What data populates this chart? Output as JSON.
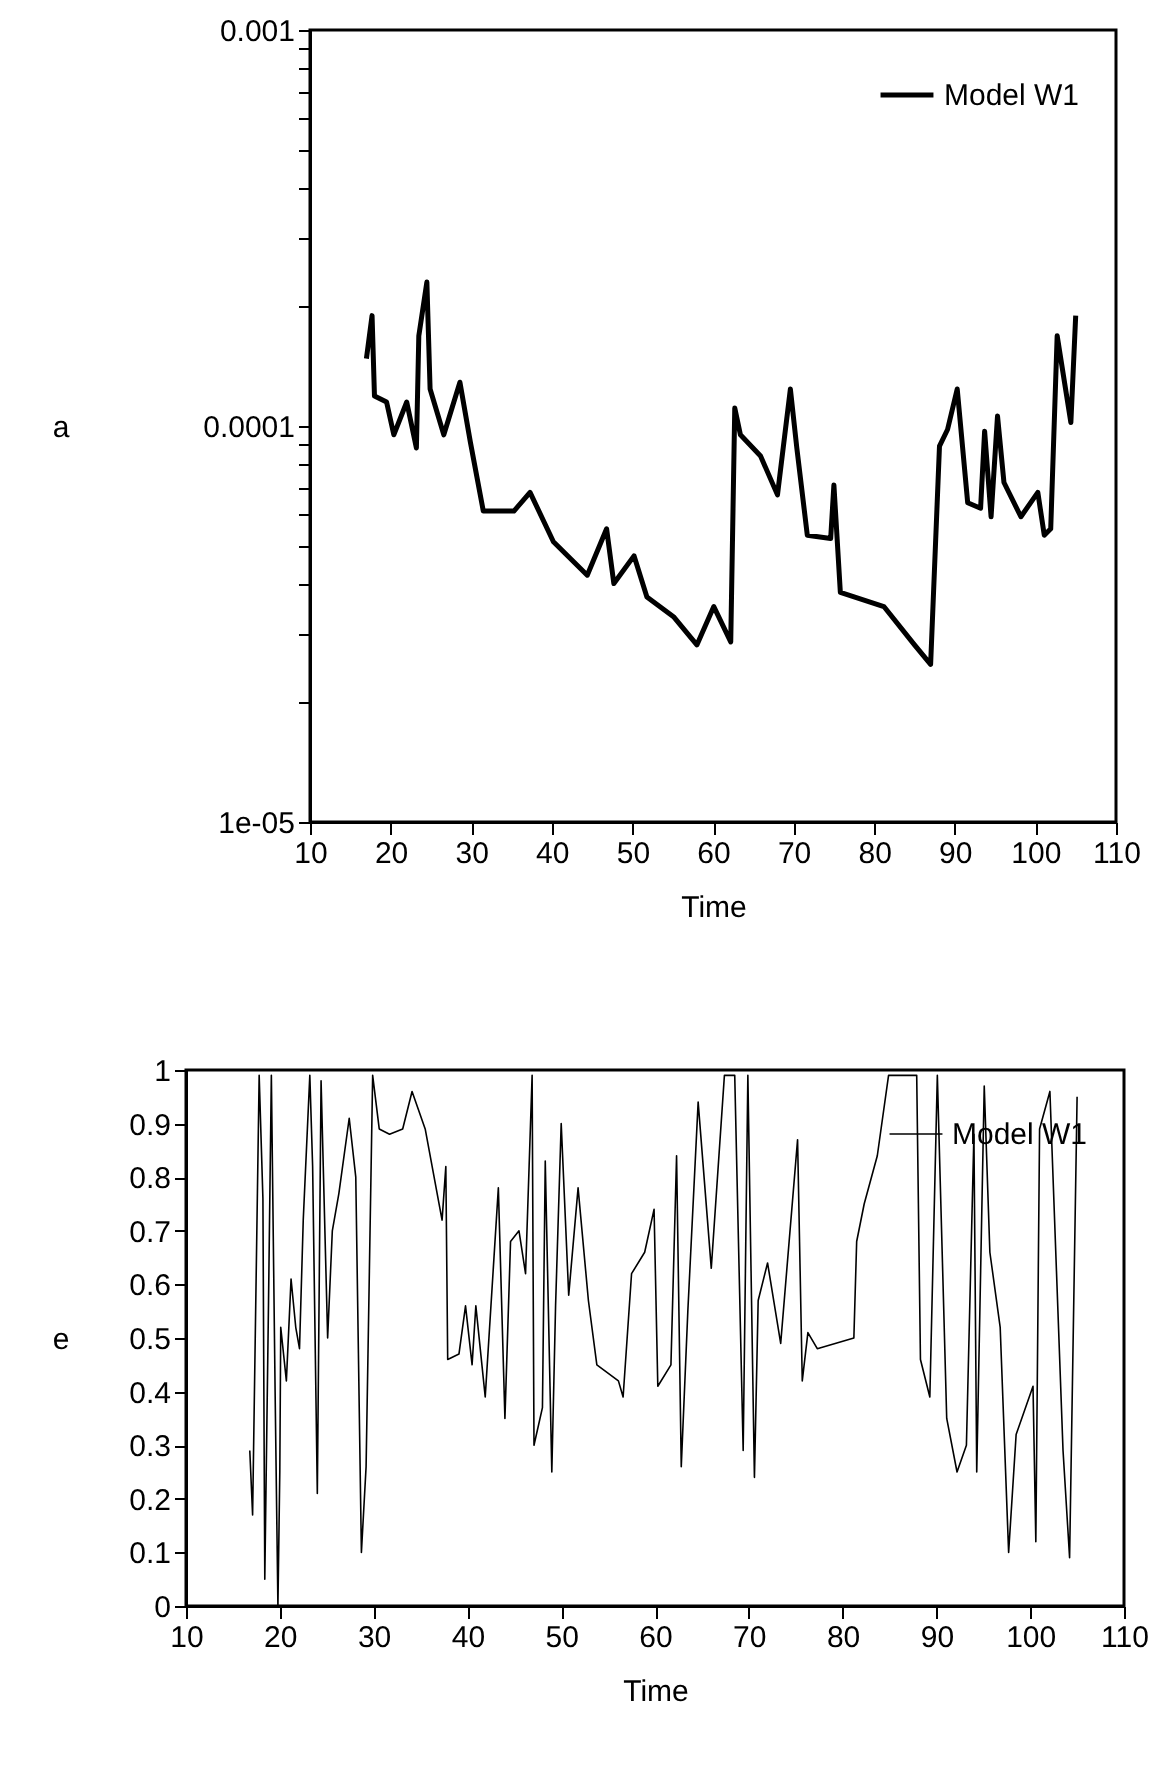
{
  "chart_data": [
    {
      "type": "line",
      "xlabel": "Time",
      "ylabel": "a",
      "log": "y",
      "legend": "top right",
      "xlim": [
        10,
        110
      ],
      "xticks": [
        10,
        20,
        30,
        40,
        50,
        60,
        70,
        80,
        90,
        100,
        110
      ],
      "ylim": [
        1e-05,
        0.001
      ],
      "yticks": [
        {
          "value": 1e-05,
          "label": "1e-05"
        },
        {
          "value": 2e-05,
          "label": null
        },
        {
          "value": 3e-05,
          "label": null
        },
        {
          "value": 4e-05,
          "label": null
        },
        {
          "value": 5e-05,
          "label": null
        },
        {
          "value": 6e-05,
          "label": null
        },
        {
          "value": 7e-05,
          "label": null
        },
        {
          "value": 8e-05,
          "label": null
        },
        {
          "value": 9e-05,
          "label": null
        },
        0.0001,
        {
          "value": 0.0002,
          "label": null
        },
        {
          "value": 0.0003,
          "label": null
        },
        {
          "value": 0.0004,
          "label": null
        },
        {
          "value": 0.0005,
          "label": null
        },
        {
          "value": 0.0006,
          "label": null
        },
        {
          "value": 0.0007,
          "label": null
        },
        {
          "value": 0.0008,
          "label": null
        },
        {
          "value": 0.0009,
          "label": null
        },
        0.001
      ],
      "series": [
        {
          "name": "Model W1",
          "color": "#000000",
          "x": [
            17.0,
            17.7,
            18.0,
            19.5,
            20.4,
            22.0,
            23.2,
            23.5,
            24.5,
            24.9,
            26.6,
            28.6,
            29.9,
            31.5,
            35.3,
            37.3,
            40.2,
            44.4,
            46.8,
            47.7,
            50.2,
            51.8,
            55.1,
            58.0,
            60.1,
            62.2,
            62.7,
            63.4,
            65.9,
            68.0,
            69.6,
            70.4,
            71.7,
            74.6,
            75.0,
            75.8,
            81.2,
            85.0,
            87.0,
            88.1,
            89.1,
            90.3,
            91.6,
            93.2,
            93.7,
            94.5,
            95.3,
            96.1,
            98.2,
            100.3,
            101.1,
            101.9,
            102.7,
            104.4,
            105.0
          ],
          "values": [
            0.000148,
            0.00019,
            0.000119,
            0.000115,
            9.5e-05,
            0.000115,
            8.8e-05,
            0.000169,
            0.000231,
            0.000124,
            9.5e-05,
            0.000129,
            9.1e-05,
            6.1e-05,
            6.1e-05,
            6.8e-05,
            5.1e-05,
            4.2e-05,
            5.5e-05,
            4e-05,
            4.7e-05,
            3.7e-05,
            3.3e-05,
            2.8e-05,
            3.5e-05,
            2.85e-05,
            0.000111,
            9.5e-05,
            8.4e-05,
            6.7e-05,
            0.000124,
            8.8e-05,
            5.3e-05,
            5.2e-05,
            7.1e-05,
            3.8e-05,
            3.5e-05,
            2.8e-05,
            2.5e-05,
            8.9e-05,
            9.8e-05,
            0.000124,
            6.4e-05,
            6.2e-05,
            9.7e-05,
            5.9e-05,
            0.000106,
            7.2e-05,
            5.9e-05,
            6.8e-05,
            5.3e-05,
            5.5e-05,
            0.000169,
            0.000102,
            0.00019
          ]
        }
      ]
    },
    {
      "type": "line",
      "xlabel": "Time",
      "ylabel": "e",
      "legend": "top right",
      "xlim": [
        10,
        110
      ],
      "xticks": [
        10,
        20,
        30,
        40,
        50,
        60,
        70,
        80,
        90,
        100,
        110
      ],
      "ylim": [
        0,
        1
      ],
      "yticks": [
        0,
        0.1,
        0.2,
        0.3,
        0.4,
        0.5,
        0.6,
        0.7,
        0.8,
        0.9,
        1
      ],
      "series": [
        {
          "name": "Model W1",
          "color": "#000000",
          "x": [
            16.8,
            17.1,
            17.8,
            18.2,
            18.4,
            18.8,
            19.1,
            19.5,
            19.8,
            20.0,
            20.1,
            20.7,
            21.2,
            21.7,
            22.1,
            22.5,
            23.2,
            23.5,
            24.0,
            24.4,
            25.1,
            25.6,
            26.3,
            27.4,
            28.1,
            28.7,
            29.2,
            29.9,
            30.6,
            31.7,
            33.1,
            34.1,
            35.5,
            37.3,
            37.7,
            37.9,
            39.1,
            39.8,
            40.5,
            40.9,
            41.9,
            43.3,
            44.0,
            44.6,
            45.5,
            46.2,
            46.9,
            47.1,
            48.0,
            48.3,
            49.0,
            49.4,
            50.0,
            50.8,
            51.8,
            52.9,
            53.8,
            56.1,
            56.6,
            57.5,
            58.9,
            59.9,
            60.3,
            61.7,
            62.3,
            62.8,
            63.5,
            64.6,
            66.0,
            67.4,
            68.5,
            69.4,
            69.9,
            70.6,
            71.0,
            72.0,
            73.4,
            75.2,
            75.7,
            76.3,
            77.3,
            81.2,
            81.5,
            82.3,
            83.7,
            84.9,
            87.9,
            88.3,
            89.3,
            90.1,
            91.1,
            92.2,
            93.2,
            94.0,
            94.3,
            95.1,
            95.7,
            96.8,
            97.7,
            98.5,
            100.3,
            100.6,
            101.0,
            102.1,
            103.5,
            104.2,
            105.0
          ],
          "values": [
            0.29,
            0.17,
            0.99,
            0.76,
            0.05,
            0.57,
            0.99,
            0.4,
            0.0,
            0.25,
            0.52,
            0.42,
            0.61,
            0.52,
            0.48,
            0.72,
            0.99,
            0.82,
            0.21,
            0.98,
            0.5,
            0.7,
            0.77,
            0.91,
            0.8,
            0.1,
            0.26,
            0.99,
            0.89,
            0.88,
            0.89,
            0.96,
            0.89,
            0.72,
            0.82,
            0.46,
            0.47,
            0.56,
            0.45,
            0.56,
            0.39,
            0.78,
            0.35,
            0.68,
            0.7,
            0.62,
            0.99,
            0.3,
            0.37,
            0.83,
            0.25,
            0.56,
            0.9,
            0.58,
            0.78,
            0.57,
            0.45,
            0.42,
            0.39,
            0.62,
            0.66,
            0.74,
            0.41,
            0.45,
            0.84,
            0.26,
            0.55,
            0.94,
            0.63,
            0.99,
            0.99,
            0.29,
            0.99,
            0.24,
            0.57,
            0.64,
            0.49,
            0.87,
            0.42,
            0.51,
            0.48,
            0.5,
            0.68,
            0.75,
            0.84,
            0.99,
            0.99,
            0.46,
            0.39,
            0.99,
            0.35,
            0.25,
            0.3,
            0.88,
            0.25,
            0.97,
            0.66,
            0.52,
            0.1,
            0.32,
            0.41,
            0.12,
            0.89,
            0.96,
            0.29,
            0.09,
            0.95
          ]
        }
      ]
    }
  ]
}
